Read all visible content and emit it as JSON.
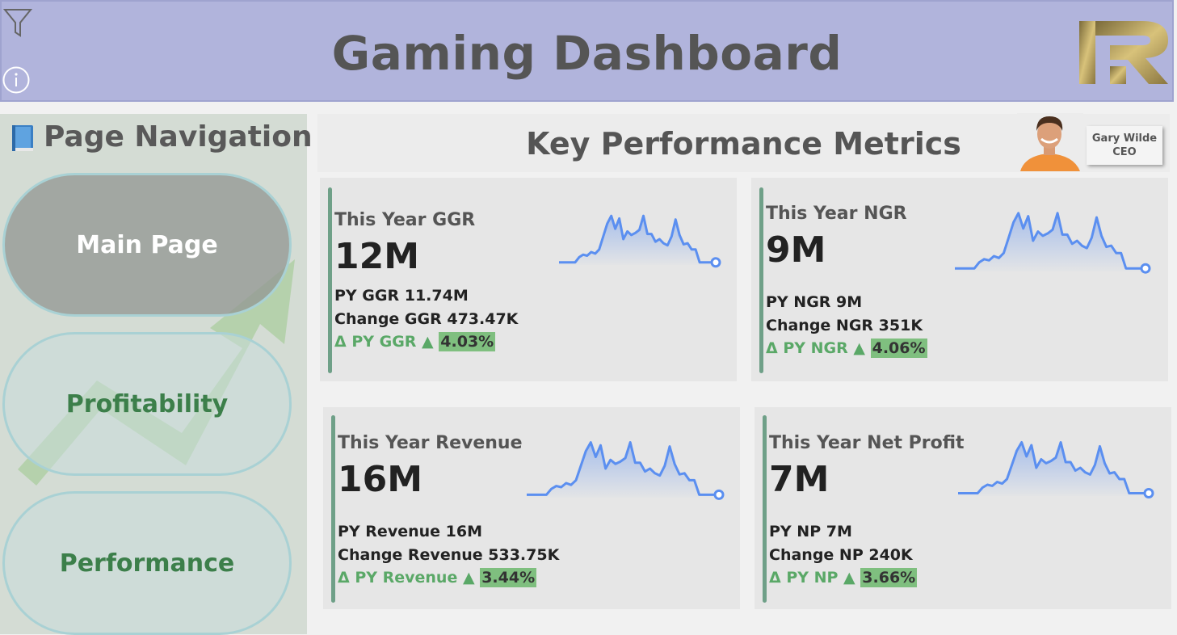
{
  "header": {
    "title": "Gaming Dashboard",
    "filter_icon": "filter-icon",
    "info_icon": "info-icon",
    "logo_icon": "logo-icon"
  },
  "sidebar": {
    "title": "Page Navigation",
    "book_icon": "book-icon",
    "items": [
      {
        "label": "Main Page"
      },
      {
        "label": "Profitability"
      },
      {
        "label": "Performance"
      }
    ]
  },
  "kpi": {
    "title": "Key Performance Metrics"
  },
  "ceo": {
    "name": "Gary Wilde",
    "role": "CEO"
  },
  "cards": [
    {
      "label": "This Year GGR",
      "value": "12M",
      "py": "PY GGR 11.74M",
      "change": "Change GGR 473.47K",
      "delta_label": "Δ PY GGR ▲",
      "delta_pct": "4.03%"
    },
    {
      "label": "This Year NGR",
      "value": "9M",
      "py": "PY NGR 9M",
      "change": "Change NGR 351K",
      "delta_label": "Δ PY NGR ▲",
      "delta_pct": "4.06%"
    },
    {
      "label": "This Year Revenue",
      "value": "16M",
      "py": "PY Revenue 16M",
      "change": "Change Revenue 533.75K",
      "delta_label": "Δ PY Revenue ▲",
      "delta_pct": "3.44%"
    },
    {
      "label": "This Year Net Profit",
      "value": "7M",
      "py": "PY NP 7M",
      "change": "Change NP 240K",
      "delta_label": "Δ PY NP ▲",
      "delta_pct": "3.66%"
    }
  ],
  "colors": {
    "accent": "#6fa088",
    "sparkline": "#5b8ff0",
    "delta_green": "#5aa867"
  }
}
